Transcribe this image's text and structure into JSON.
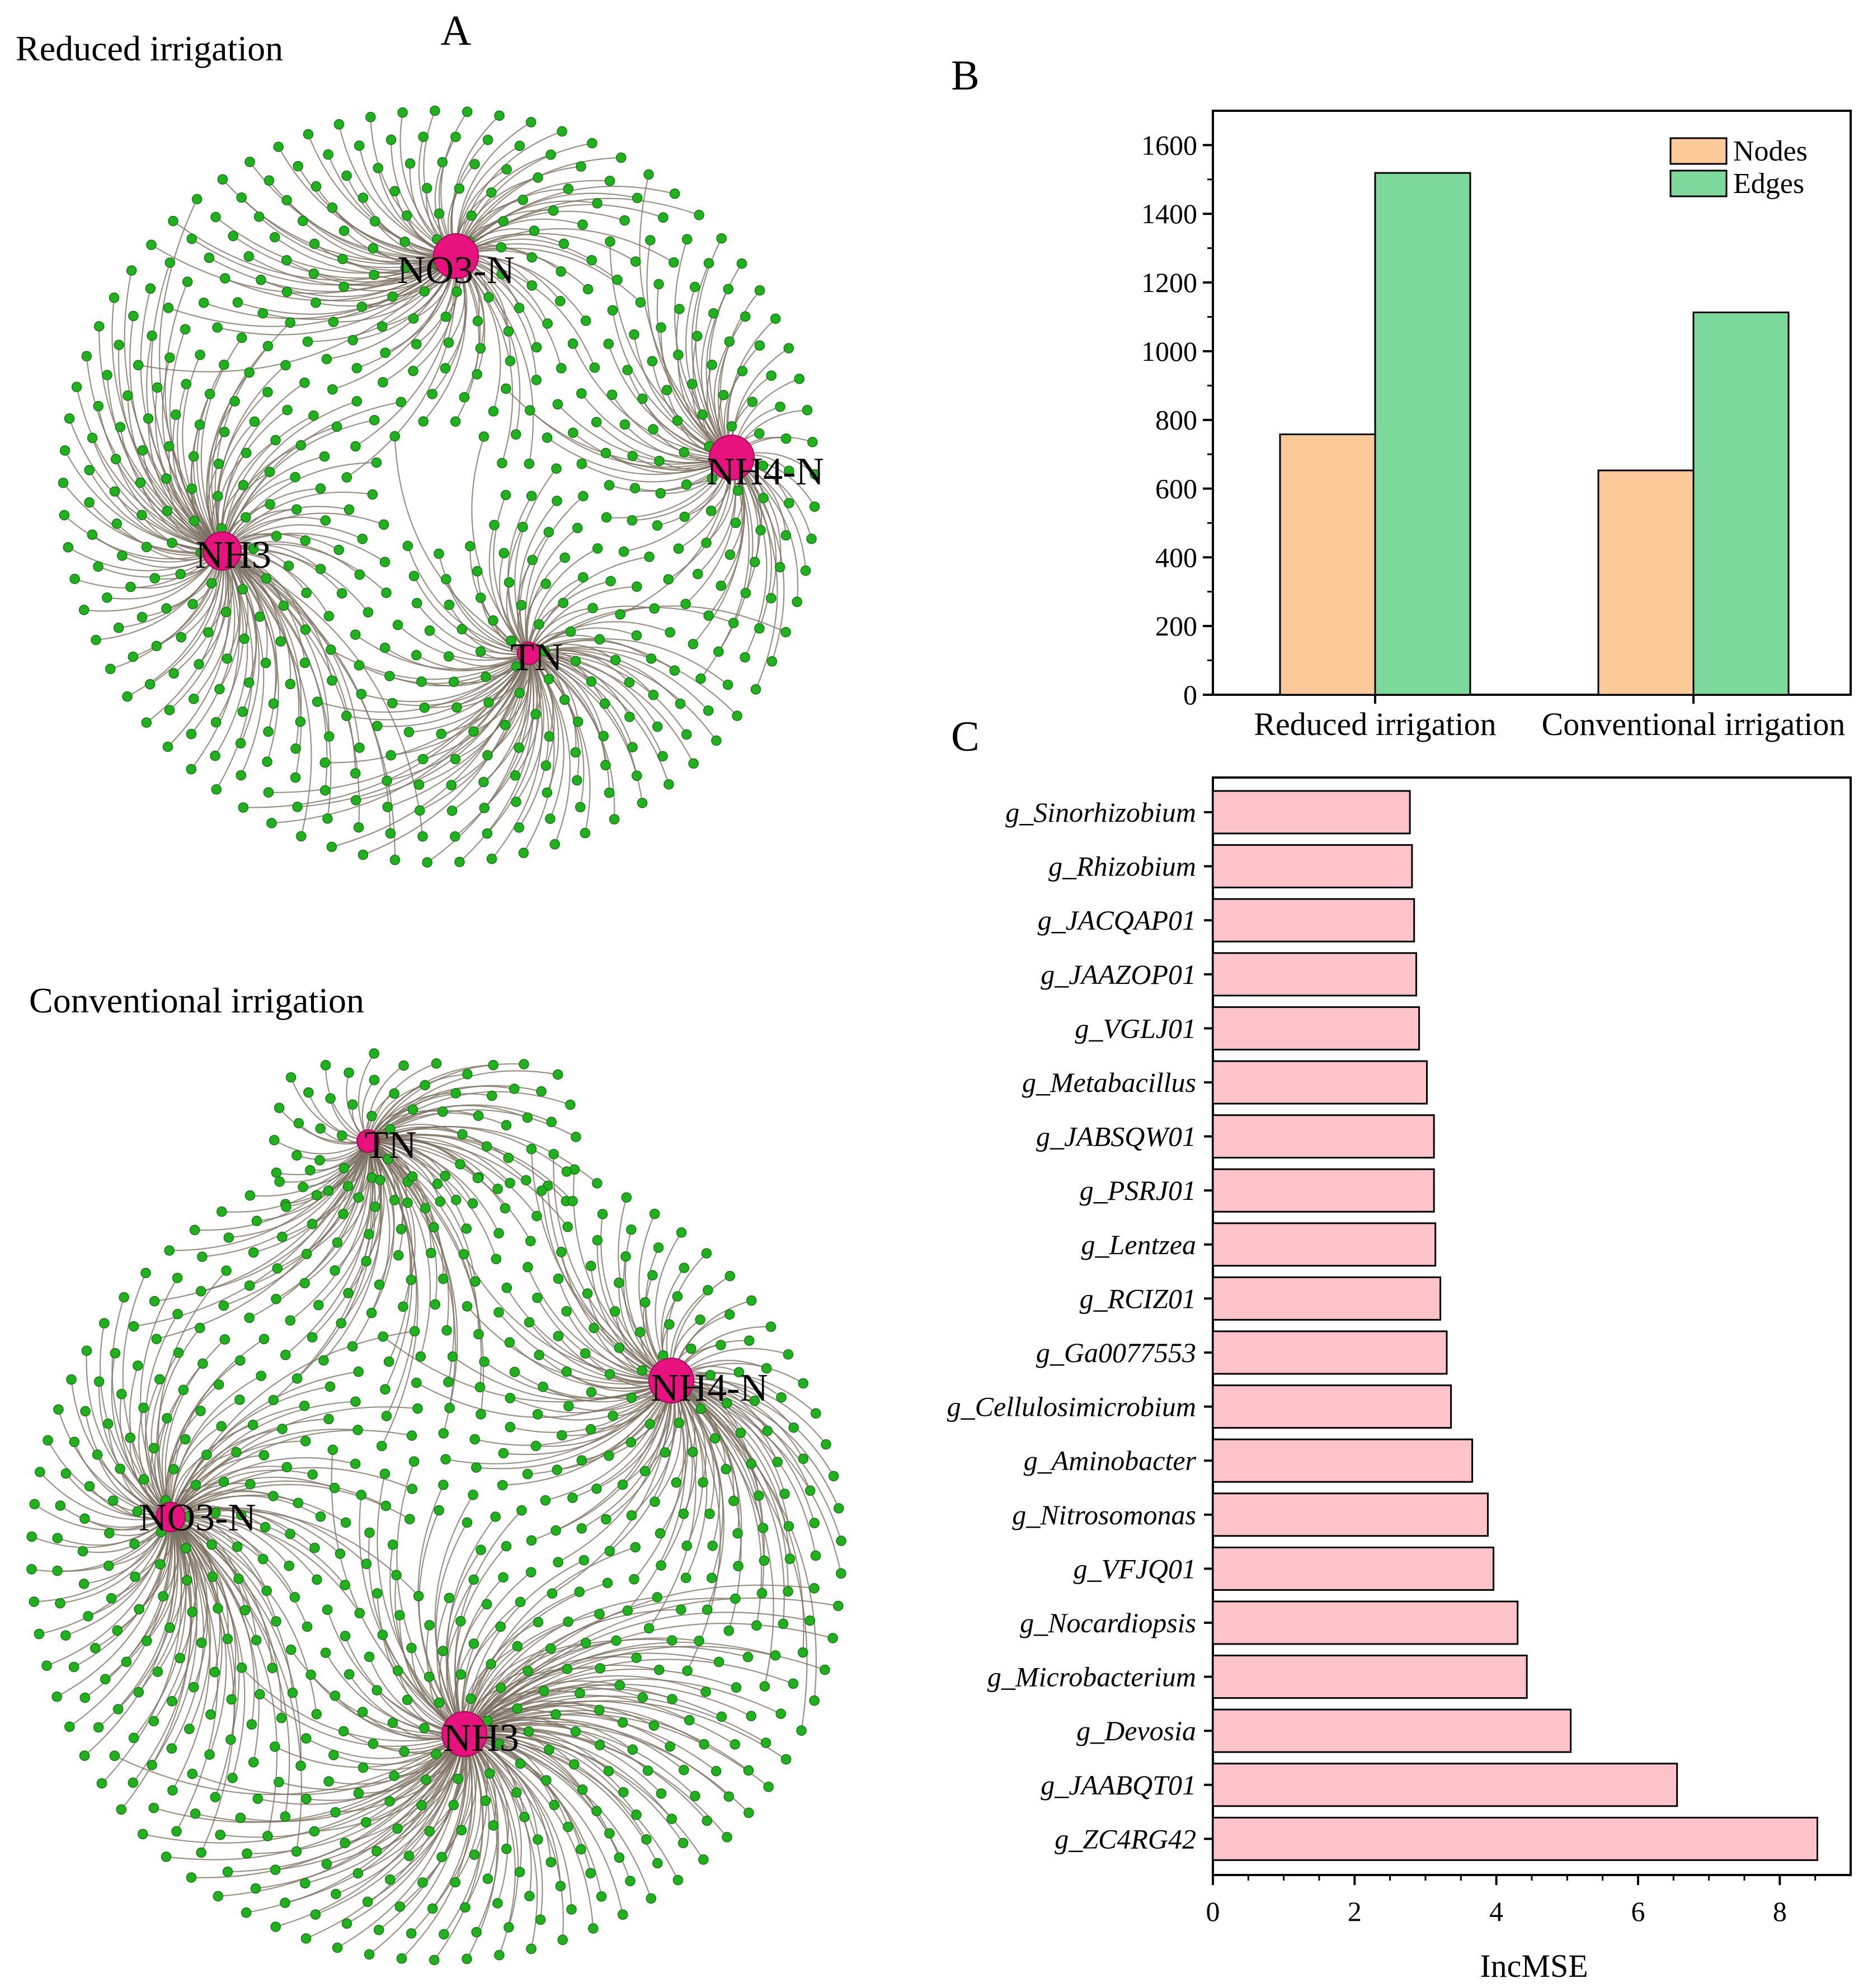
{
  "panels": {
    "a": {
      "letter": "A",
      "networks": [
        {
          "title": "Reduced irrigation",
          "hubs": [
            {
              "id": "no3",
              "label": "NO3-N"
            },
            {
              "id": "nh4",
              "label": "NH4-N"
            },
            {
              "id": "nh3",
              "label": "NH3"
            },
            {
              "id": "tn",
              "label": "TN"
            }
          ]
        },
        {
          "title": "Conventional irrigation",
          "hubs": [
            {
              "id": "tn",
              "label": "TN"
            },
            {
              "id": "nh4",
              "label": "NH4-N"
            },
            {
              "id": "no3",
              "label": "NO3-N"
            },
            {
              "id": "nh3",
              "label": "NH3"
            }
          ]
        }
      ],
      "colors": {
        "node": "#22b11e",
        "node_stroke": "#0f7a10",
        "hub": "#e8127e",
        "edge": "#7a6e5e"
      }
    },
    "b": {
      "letter": "B"
    },
    "c": {
      "letter": "C"
    }
  },
  "chart_data": [
    {
      "type": "bar",
      "panel": "B",
      "categories": [
        "Reduced irrigation",
        "Conventional irrigation"
      ],
      "series": [
        {
          "name": "Nodes",
          "values": [
            758,
            653
          ],
          "color": "#fcc998"
        },
        {
          "name": "Edges",
          "values": [
            1519,
            1113
          ],
          "color": "#7dd89b"
        }
      ],
      "ylim": [
        0,
        1700
      ],
      "yticks": [
        0,
        200,
        400,
        600,
        800,
        1000,
        1200,
        1400,
        1600
      ],
      "legend_position": "top-right"
    },
    {
      "type": "bar",
      "orientation": "horizontal",
      "panel": "C",
      "categories": [
        "g_Sinorhizobium",
        "g_Rhizobium",
        "g_JACQAP01",
        "g_JAAZOP01",
        "g_VGLJ01",
        "g_Metabacillus",
        "g_JABSQW01",
        "g_PSRJ01",
        "g_Lentzea",
        "g_RCIZ01",
        "g_Ga0077553",
        "g_Cellulosimicrobium",
        "g_Aminobacter",
        "g_Nitrosomonas",
        "g_VFJQ01",
        "g_Nocardiopsis",
        "g_Microbacterium",
        "g_Devosia",
        "g_JAABQT01",
        "g_ZC4RG42"
      ],
      "values": [
        2.78,
        2.81,
        2.84,
        2.87,
        2.91,
        3.02,
        3.12,
        3.12,
        3.14,
        3.21,
        3.3,
        3.36,
        3.66,
        3.88,
        3.96,
        4.3,
        4.43,
        5.05,
        6.55,
        8.53
      ],
      "xlabel": "IncMSE",
      "xlim": [
        0,
        9
      ],
      "xticks": [
        0,
        2,
        4,
        6,
        8
      ],
      "color": "#ffc4c9"
    }
  ]
}
